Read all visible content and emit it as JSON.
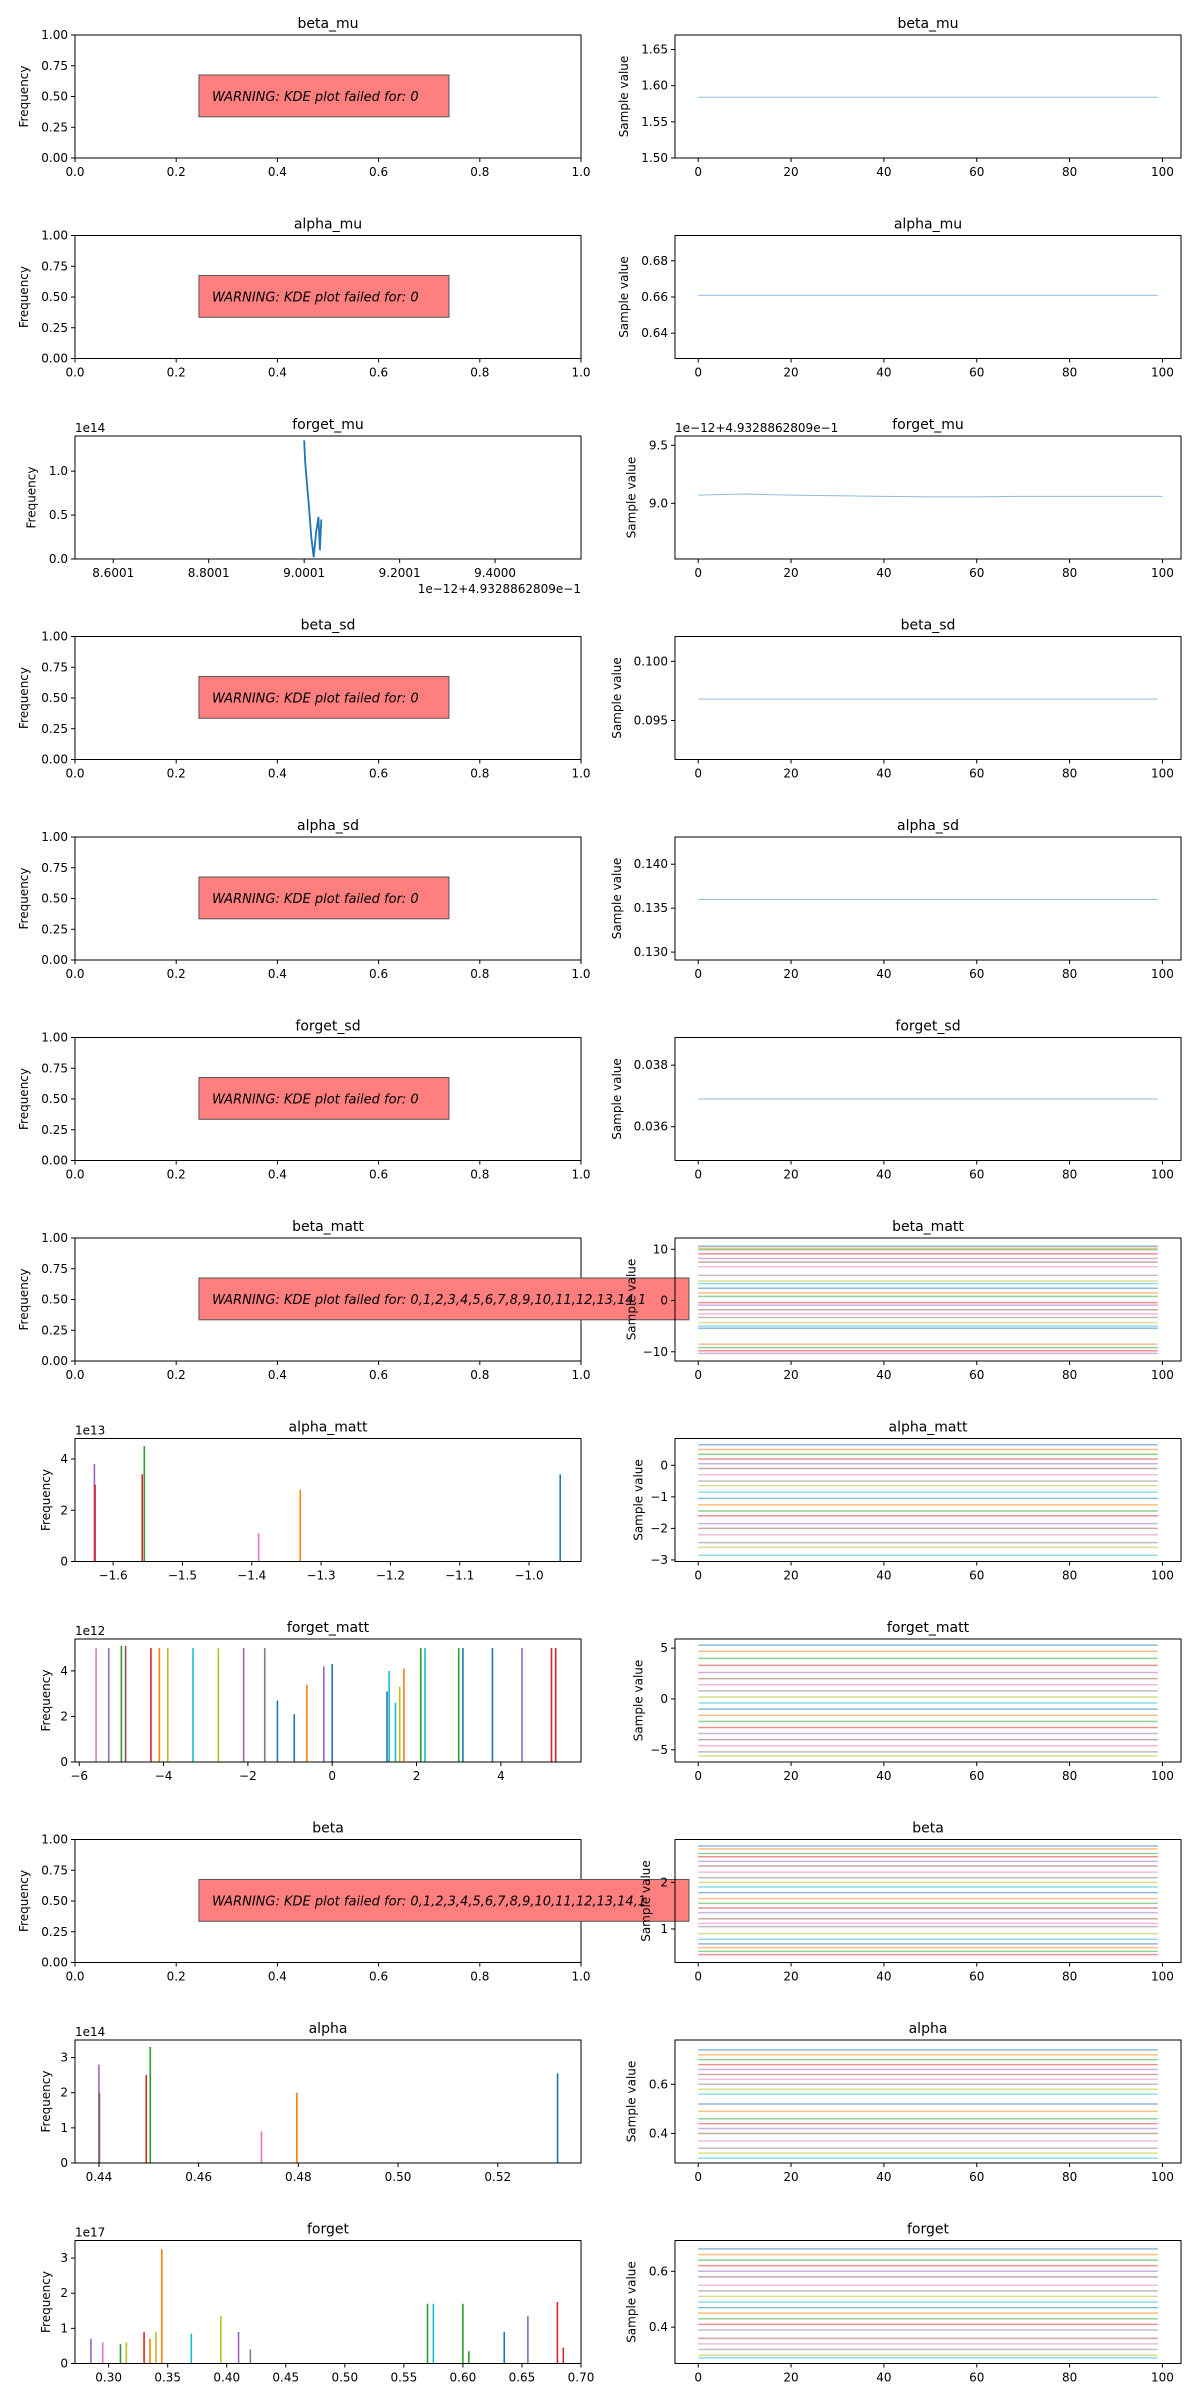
{
  "figure": {
    "colors": [
      "#1f77b4",
      "#ff7f0e",
      "#2ca02c",
      "#d62728",
      "#9467bd",
      "#8c564b",
      "#e377c2",
      "#7f7f7f",
      "#bcbd22",
      "#17becf"
    ],
    "warning_bg": "#ff7f7f"
  },
  "chart_data": [
    {
      "id": "beta_mu-kde",
      "type": "warning-panel",
      "title": "beta_mu",
      "ylabel": "Frequency",
      "xticks": [
        "0.0",
        "0.2",
        "0.4",
        "0.6",
        "0.8",
        "1.0"
      ],
      "yticks": [
        "0.00",
        "0.25",
        "0.50",
        "0.75",
        "1.00"
      ],
      "xlim": [
        0,
        1
      ],
      "ylim": [
        0,
        1
      ],
      "warning": "WARNING: KDE plot failed for: 0"
    },
    {
      "id": "beta_mu-trace",
      "type": "line",
      "title": "beta_mu",
      "ylabel": "Sample value",
      "xticks": [
        "0",
        "20",
        "40",
        "60",
        "80",
        "100"
      ],
      "yticks": [
        "1.50",
        "1.55",
        "1.60",
        "1.65"
      ],
      "xlim": [
        -5,
        104
      ],
      "ylim": [
        1.5,
        1.67
      ],
      "series": [
        {
          "constant": 1.584
        }
      ]
    },
    {
      "id": "alpha_mu-kde",
      "type": "warning-panel",
      "title": "alpha_mu",
      "ylabel": "Frequency",
      "xticks": [
        "0.0",
        "0.2",
        "0.4",
        "0.6",
        "0.8",
        "1.0"
      ],
      "yticks": [
        "0.00",
        "0.25",
        "0.50",
        "0.75",
        "1.00"
      ],
      "xlim": [
        0,
        1
      ],
      "ylim": [
        0,
        1
      ],
      "warning": "WARNING: KDE plot failed for: 0"
    },
    {
      "id": "alpha_mu-trace",
      "type": "line",
      "title": "alpha_mu",
      "ylabel": "Sample value",
      "xticks": [
        "0",
        "20",
        "40",
        "60",
        "80",
        "100"
      ],
      "yticks": [
        "0.64",
        "0.66",
        "0.68"
      ],
      "xlim": [
        -5,
        104
      ],
      "ylim": [
        0.626,
        0.694
      ],
      "series": [
        {
          "constant": 0.661
        }
      ]
    },
    {
      "id": "forget_mu-kde",
      "type": "line",
      "title": "forget_mu",
      "ylabel": "Frequency",
      "offset_text": "1e14",
      "xaxis_offset": "1e−12+4.9328862809e−1",
      "xticks": [
        "8.6001",
        "8.8001",
        "9.0001",
        "9.2001",
        "9.4000"
      ],
      "yticks": [
        "0.0",
        "0.5",
        "1.0"
      ],
      "xlim": [
        8.52,
        9.58
      ],
      "ylim": [
        0,
        1.4
      ],
      "series": [
        {
          "points": [
            [
              9.0001,
              1.35
            ],
            [
              9.002,
              1.12
            ],
            [
              9.005,
              0.92
            ],
            [
              9.01,
              0.6
            ],
            [
              9.015,
              0.25
            ],
            [
              9.02,
              0.02
            ],
            [
              9.025,
              0.3
            ],
            [
              9.03,
              0.48
            ],
            [
              9.033,
              0.1
            ],
            [
              9.036,
              0.45
            ]
          ]
        }
      ]
    },
    {
      "id": "forget_mu-trace",
      "type": "line",
      "title": "forget_mu",
      "ylabel": "Sample value",
      "offset_text": "1e−12+4.9328862809e−1",
      "xticks": [
        "0",
        "20",
        "40",
        "60",
        "80",
        "100"
      ],
      "yticks": [
        "9.0",
        "9.5"
      ],
      "xlim": [
        -5,
        104
      ],
      "ylim": [
        8.52,
        9.58
      ],
      "series": [
        {
          "points": [
            [
              0,
              9.07
            ],
            [
              10,
              9.08
            ],
            [
              20,
              9.07
            ],
            [
              30,
              9.065
            ],
            [
              40,
              9.06
            ],
            [
              50,
              9.055
            ],
            [
              60,
              9.055
            ],
            [
              70,
              9.06
            ],
            [
              80,
              9.06
            ],
            [
              90,
              9.06
            ],
            [
              100,
              9.06
            ]
          ]
        }
      ]
    },
    {
      "id": "beta_sd-kde",
      "type": "warning-panel",
      "title": "beta_sd",
      "ylabel": "Frequency",
      "xticks": [
        "0.0",
        "0.2",
        "0.4",
        "0.6",
        "0.8",
        "1.0"
      ],
      "yticks": [
        "0.00",
        "0.25",
        "0.50",
        "0.75",
        "1.00"
      ],
      "xlim": [
        0,
        1
      ],
      "ylim": [
        0,
        1
      ],
      "warning": "WARNING: KDE plot failed for: 0"
    },
    {
      "id": "beta_sd-trace",
      "type": "line",
      "title": "beta_sd",
      "ylabel": "Sample value",
      "xticks": [
        "0",
        "20",
        "40",
        "60",
        "80",
        "100"
      ],
      "yticks": [
        "0.095",
        "0.100"
      ],
      "xlim": [
        -5,
        104
      ],
      "ylim": [
        0.0917,
        0.1021
      ],
      "series": [
        {
          "constant": 0.0968
        }
      ]
    },
    {
      "id": "alpha_sd-kde",
      "type": "warning-panel",
      "title": "alpha_sd",
      "ylabel": "Frequency",
      "xticks": [
        "0.0",
        "0.2",
        "0.4",
        "0.6",
        "0.8",
        "1.0"
      ],
      "yticks": [
        "0.00",
        "0.25",
        "0.50",
        "0.75",
        "1.00"
      ],
      "xlim": [
        0,
        1
      ],
      "ylim": [
        0,
        1
      ],
      "warning": "WARNING: KDE plot failed for: 0"
    },
    {
      "id": "alpha_sd-trace",
      "type": "line",
      "title": "alpha_sd",
      "ylabel": "Sample value",
      "xticks": [
        "0",
        "20",
        "40",
        "60",
        "80",
        "100"
      ],
      "yticks": [
        "0.130",
        "0.135",
        "0.140"
      ],
      "xlim": [
        -5,
        104
      ],
      "ylim": [
        0.1291,
        0.1431
      ],
      "series": [
        {
          "constant": 0.136
        }
      ]
    },
    {
      "id": "forget_sd-kde",
      "type": "warning-panel",
      "title": "forget_sd",
      "ylabel": "Frequency",
      "xticks": [
        "0.0",
        "0.2",
        "0.4",
        "0.6",
        "0.8",
        "1.0"
      ],
      "yticks": [
        "0.00",
        "0.25",
        "0.50",
        "0.75",
        "1.00"
      ],
      "xlim": [
        0,
        1
      ],
      "ylim": [
        0,
        1
      ],
      "warning": "WARNING: KDE plot failed for: 0"
    },
    {
      "id": "forget_sd-trace",
      "type": "line",
      "title": "forget_sd",
      "ylabel": "Sample value",
      "xticks": [
        "0",
        "20",
        "40",
        "60",
        "80",
        "100"
      ],
      "yticks": [
        "0.036",
        "0.038"
      ],
      "xlim": [
        -5,
        104
      ],
      "ylim": [
        0.0349,
        0.0389
      ],
      "series": [
        {
          "constant": 0.0369
        }
      ]
    },
    {
      "id": "beta_matt-kde",
      "type": "warning-panel",
      "title": "beta_matt",
      "ylabel": "Frequency",
      "xticks": [
        "0.0",
        "0.2",
        "0.4",
        "0.6",
        "0.8",
        "1.0"
      ],
      "yticks": [
        "0.00",
        "0.25",
        "0.50",
        "0.75",
        "1.00"
      ],
      "xlim": [
        0,
        1
      ],
      "ylim": [
        0,
        1
      ],
      "warning": "WARNING: KDE plot failed for: 0,1,2,3,4,5,6,7,8,9,10,11,12,13,14,1"
    },
    {
      "id": "beta_matt-trace",
      "type": "line",
      "title": "beta_matt",
      "ylabel": "Sample value",
      "xticks": [
        "0",
        "20",
        "40",
        "60",
        "80",
        "100"
      ],
      "yticks": [
        "−10",
        "0",
        "10"
      ],
      "xlim": [
        -5,
        104
      ],
      "ylim": [
        -11.8,
        12.2
      ],
      "constants": [
        10.6,
        10.2,
        9.9,
        9.1,
        8.2,
        7.5,
        6.6,
        4.9,
        3.8,
        3.3,
        2.4,
        1.5,
        0.8,
        -0.4,
        -0.9,
        -1.8,
        -2.6,
        -3.3,
        -4.3,
        -5.0,
        -5.4,
        -8.5,
        -9.2,
        -9.8,
        -10.3
      ]
    },
    {
      "id": "alpha_matt-kde",
      "type": "bar",
      "title": "alpha_matt",
      "ylabel": "Frequency",
      "offset_text": "1e13",
      "xticks": [
        "−1.6",
        "−1.5",
        "−1.4",
        "−1.3",
        "−1.2",
        "−1.1",
        "−1.0"
      ],
      "yticks": [
        "0",
        "2",
        "4"
      ],
      "xlim": [
        -1.655,
        -0.925
      ],
      "ylim": [
        0,
        4.8
      ],
      "spikes": [
        [
          -1.627,
          3.8,
          4
        ],
        [
          -1.626,
          3.0,
          3
        ],
        [
          -1.558,
          3.4,
          3
        ],
        [
          -1.555,
          4.5,
          2
        ],
        [
          -1.39,
          1.1,
          6
        ],
        [
          -1.33,
          2.8,
          1
        ],
        [
          -0.955,
          3.4,
          0
        ]
      ]
    },
    {
      "id": "alpha_matt-trace",
      "type": "line",
      "title": "alpha_matt",
      "ylabel": "Sample value",
      "xticks": [
        "0",
        "20",
        "40",
        "60",
        "80",
        "100"
      ],
      "yticks": [
        "−3",
        "−2",
        "−1",
        "0"
      ],
      "xlim": [
        -5,
        104
      ],
      "ylim": [
        -3.05,
        0.85
      ],
      "constants": [
        0.65,
        0.5,
        0.35,
        0.2,
        0.05,
        -0.1,
        -0.3,
        -0.5,
        -0.65,
        -0.85,
        -1.05,
        -1.25,
        -1.45,
        -1.6,
        -1.85,
        -2.0,
        -2.2,
        -2.45,
        -2.6,
        -2.85
      ]
    },
    {
      "id": "forget_matt-kde",
      "type": "bar",
      "title": "forget_matt",
      "ylabel": "Frequency",
      "offset_text": "1e12",
      "xticks": [
        "−6",
        "−4",
        "−2",
        "0",
        "2",
        "4"
      ],
      "yticks": [
        "0",
        "2",
        "4"
      ],
      "xlim": [
        -6.1,
        5.9
      ],
      "ylim": [
        0,
        5.4
      ],
      "spikes": [
        [
          -5.6,
          5.0,
          6
        ],
        [
          -5.3,
          5.0,
          4
        ],
        [
          -5.0,
          5.1,
          2
        ],
        [
          -4.9,
          5.1,
          5
        ],
        [
          -4.3,
          5.0,
          3
        ],
        [
          -4.1,
          5.0,
          1
        ],
        [
          -3.9,
          5.0,
          8
        ],
        [
          -3.3,
          5.0,
          9
        ],
        [
          -2.7,
          5.0,
          8
        ],
        [
          -2.1,
          5.0,
          4
        ],
        [
          -1.6,
          5.0,
          7
        ],
        [
          -1.3,
          2.7,
          0
        ],
        [
          -0.9,
          2.1,
          0
        ],
        [
          -0.6,
          3.4,
          1
        ],
        [
          -0.2,
          4.2,
          4
        ],
        [
          0.0,
          4.3,
          0
        ],
        [
          1.3,
          3.1,
          0
        ],
        [
          1.35,
          4.0,
          9
        ],
        [
          1.5,
          2.6,
          9
        ],
        [
          1.6,
          3.3,
          8
        ],
        [
          1.7,
          4.1,
          1
        ],
        [
          2.1,
          5.0,
          2
        ],
        [
          2.2,
          5.0,
          9
        ],
        [
          3.0,
          5.0,
          2
        ],
        [
          3.1,
          5.0,
          0
        ],
        [
          3.8,
          5.0,
          0
        ],
        [
          4.5,
          5.0,
          4
        ],
        [
          5.2,
          5.0,
          3
        ],
        [
          5.3,
          5.0,
          3
        ]
      ]
    },
    {
      "id": "forget_matt-trace",
      "type": "line",
      "title": "forget_matt",
      "ylabel": "Sample value",
      "xticks": [
        "0",
        "20",
        "40",
        "60",
        "80",
        "100"
      ],
      "yticks": [
        "−5",
        "0",
        "5"
      ],
      "xlim": [
        -5,
        104
      ],
      "ylim": [
        -6.2,
        5.9
      ],
      "constants": [
        5.3,
        4.7,
        4.0,
        3.3,
        2.6,
        2.0,
        1.4,
        0.8,
        0.2,
        -0.4,
        -1.0,
        -1.6,
        -2.2,
        -2.8,
        -3.4,
        -4.0,
        -4.6,
        -5.2,
        -5.6
      ]
    },
    {
      "id": "beta-kde",
      "type": "warning-panel",
      "title": "beta",
      "ylabel": "Frequency",
      "xticks": [
        "0.0",
        "0.2",
        "0.4",
        "0.6",
        "0.8",
        "1.0"
      ],
      "yticks": [
        "0.00",
        "0.25",
        "0.50",
        "0.75",
        "1.00"
      ],
      "xlim": [
        0,
        1
      ],
      "ylim": [
        0,
        1
      ],
      "warning": "WARNING: KDE plot failed for: 0,1,2,3,4,5,6,7,8,9,10,11,12,13,14,1"
    },
    {
      "id": "beta-trace",
      "type": "line",
      "title": "beta",
      "ylabel": "Sample value",
      "xticks": [
        "0",
        "20",
        "40",
        "60",
        "80",
        "100"
      ],
      "yticks": [
        "1",
        "2"
      ],
      "xlim": [
        -5,
        104
      ],
      "ylim": [
        0.28,
        2.92
      ],
      "constants": [
        2.78,
        2.72,
        2.62,
        2.55,
        2.45,
        2.35,
        2.22,
        2.1,
        2.0,
        1.9,
        1.78,
        1.65,
        1.55,
        1.45,
        1.35,
        1.22,
        1.12,
        1.05,
        0.9,
        0.78,
        0.68,
        0.6,
        0.52,
        0.45
      ]
    },
    {
      "id": "alpha-kde",
      "type": "bar",
      "title": "alpha",
      "ylabel": "Frequency",
      "offset_text": "1e14",
      "xticks": [
        "0.44",
        "0.46",
        "0.48",
        "0.50",
        "0.52"
      ],
      "yticks": [
        "0",
        "1",
        "2",
        "3"
      ],
      "xlim": [
        0.4352,
        0.5367
      ],
      "ylim": [
        0,
        3.5
      ],
      "spikes": [
        [
          0.44,
          2.8,
          4
        ],
        [
          0.4401,
          2.0,
          5
        ],
        [
          0.4495,
          2.5,
          3
        ],
        [
          0.4503,
          3.3,
          2
        ],
        [
          0.4726,
          0.9,
          6
        ],
        [
          0.4797,
          2.0,
          1
        ],
        [
          0.532,
          2.55,
          0
        ]
      ]
    },
    {
      "id": "alpha-trace",
      "type": "line",
      "title": "alpha",
      "ylabel": "Sample value",
      "xticks": [
        "0",
        "20",
        "40",
        "60",
        "80",
        "100"
      ],
      "yticks": [
        "0.4",
        "0.6"
      ],
      "xlim": [
        -5,
        104
      ],
      "ylim": [
        0.28,
        0.78
      ],
      "constants": [
        0.74,
        0.72,
        0.7,
        0.68,
        0.66,
        0.64,
        0.62,
        0.6,
        0.58,
        0.56,
        0.52,
        0.49,
        0.46,
        0.44,
        0.42,
        0.4,
        0.37,
        0.34,
        0.32,
        0.3
      ]
    },
    {
      "id": "forget-kde",
      "type": "bar",
      "title": "forget",
      "ylabel": "Frequency",
      "offset_text": "1e17",
      "xticks": [
        "0.30",
        "0.35",
        "0.40",
        "0.45",
        "0.50",
        "0.55",
        "0.60",
        "0.65",
        "0.70"
      ],
      "yticks": [
        "0",
        "1",
        "2",
        "3"
      ],
      "xlim": [
        0.2715,
        0.7
      ],
      "ylim": [
        0,
        3.5
      ],
      "spikes": [
        [
          0.285,
          0.7,
          4
        ],
        [
          0.295,
          0.6,
          6
        ],
        [
          0.31,
          0.55,
          2
        ],
        [
          0.315,
          0.6,
          8
        ],
        [
          0.33,
          0.9,
          3
        ],
        [
          0.335,
          0.7,
          1
        ],
        [
          0.34,
          0.9,
          8
        ],
        [
          0.345,
          3.25,
          1
        ],
        [
          0.37,
          0.85,
          9
        ],
        [
          0.395,
          1.35,
          8
        ],
        [
          0.41,
          0.9,
          4
        ],
        [
          0.42,
          0.4,
          7
        ],
        [
          0.57,
          1.7,
          2
        ],
        [
          0.575,
          1.7,
          9
        ],
        [
          0.6,
          1.7,
          2
        ],
        [
          0.605,
          0.35,
          2
        ],
        [
          0.635,
          0.9,
          0
        ],
        [
          0.655,
          1.35,
          4
        ],
        [
          0.68,
          1.75,
          3
        ],
        [
          0.685,
          0.45,
          3
        ]
      ]
    },
    {
      "id": "forget-trace",
      "type": "line",
      "title": "forget",
      "ylabel": "Sample value",
      "xticks": [
        "0",
        "20",
        "40",
        "60",
        "80",
        "100"
      ],
      "yticks": [
        "0.4",
        "0.6"
      ],
      "xlim": [
        -5,
        104
      ],
      "ylim": [
        0.27,
        0.71
      ],
      "constants": [
        0.68,
        0.66,
        0.64,
        0.62,
        0.6,
        0.58,
        0.55,
        0.53,
        0.51,
        0.49,
        0.47,
        0.45,
        0.43,
        0.41,
        0.39,
        0.36,
        0.34,
        0.32,
        0.3,
        0.29
      ]
    }
  ]
}
